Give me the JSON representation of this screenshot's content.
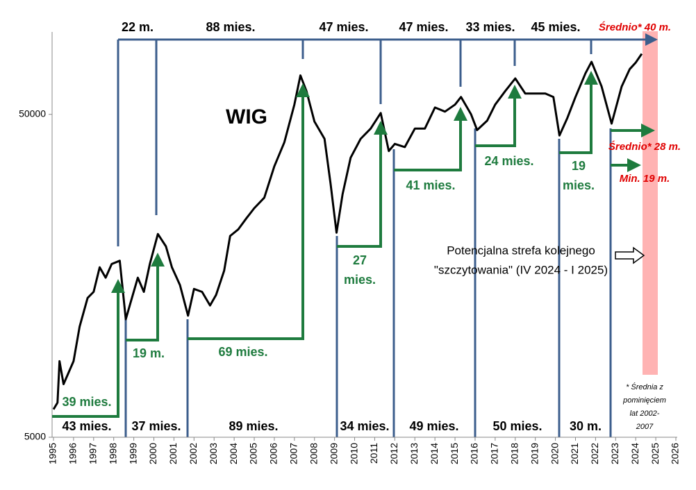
{
  "chart_data": {
    "type": "line",
    "x": [
      1995.0,
      1995.2,
      1995.3,
      1995.5,
      1996.0,
      1996.3,
      1996.7,
      1997.0,
      1997.3,
      1997.6,
      1997.9,
      1998.3,
      1998.6,
      1998.8,
      1999.2,
      1999.5,
      1999.8,
      2000.2,
      2000.6,
      2000.9,
      2001.3,
      2001.7,
      2002.0,
      2002.4,
      2002.8,
      2003.1,
      2003.5,
      2003.8,
      2004.2,
      2004.6,
      2005.0,
      2005.5,
      2006.0,
      2006.5,
      2007.0,
      2007.3,
      2007.6,
      2008.0,
      2008.5,
      2008.8,
      2009.1,
      2009.4,
      2009.8,
      2010.3,
      2010.8,
      2011.3,
      2011.7,
      2012.0,
      2012.5,
      2013.0,
      2013.5,
      2014.0,
      2014.5,
      2015.0,
      2015.3,
      2015.8,
      2016.1,
      2016.6,
      2017.0,
      2017.5,
      2018.0,
      2018.5,
      2019.0,
      2019.5,
      2019.9,
      2020.2,
      2020.6,
      2021.0,
      2021.5,
      2021.8,
      2022.3,
      2022.8,
      2023.3,
      2023.7,
      2024.0,
      2024.3
    ],
    "series": [
      {
        "name": "WIG",
        "color": "#000000",
        "values": [
          6100,
          6400,
          8600,
          7300,
          8600,
          11000,
          13500,
          14100,
          16800,
          15600,
          17200,
          17600,
          11600,
          12800,
          15600,
          14100,
          17200,
          21300,
          19500,
          16800,
          14800,
          11900,
          14400,
          14100,
          12800,
          13800,
          16400,
          21000,
          22000,
          23800,
          25600,
          27600,
          34500,
          41000,
          53600,
          66000,
          59000,
          47500,
          42000,
          30500,
          21500,
          28300,
          36700,
          42000,
          45200,
          50500,
          38500,
          40500,
          39600,
          45200,
          45200,
          52500,
          51000,
          53600,
          56600,
          50000,
          44700,
          47800,
          53600,
          59000,
          64600,
          58000,
          58000,
          58000,
          56600,
          43000,
          48800,
          56600,
          67000,
          72700,
          61000,
          46800,
          61000,
          69000,
          72300,
          77000
        ]
      }
    ],
    "xlim": [
      1995,
      2026
    ],
    "xticks": [
      1995,
      1996,
      1997,
      1998,
      1999,
      2000,
      2001,
      2002,
      2003,
      2004,
      2005,
      2006,
      2007,
      2008,
      2009,
      2010,
      2011,
      2012,
      2013,
      2014,
      2015,
      2016,
      2017,
      2018,
      2019,
      2020,
      2021,
      2022,
      2023,
      2024,
      2025,
      2026
    ],
    "ylim": [
      5000,
      90000
    ],
    "yticks": [
      5000,
      50000
    ],
    "log_y": true,
    "top_labels": [
      "22 m.",
      "88 mies.",
      "47 mies.",
      "47 mies.",
      "33 mies.",
      "45 mies.",
      "Średnio* 40 m."
    ],
    "bottom_labels": [
      "43 mies.",
      "37 mies.",
      "89 mies.",
      "34 mies.",
      "49 mies.",
      "50 mies.",
      "30 m."
    ],
    "rise_labels": [
      "39 mies.",
      "19 m.",
      "69 mies.",
      [
        "27",
        "mies."
      ],
      "41 mies.",
      "24 mies.",
      [
        "19",
        "mies."
      ]
    ],
    "average_labels": [
      "Średnio* 28 m.",
      "Min. 19 m."
    ],
    "zone_note": [
      "Potencjalna strefa kolejnego",
      "\"szczytowania\" (IV 2024 - I 2025)"
    ],
    "footnote": [
      "* Średnia z",
      "pominięciem",
      "lat 2002-",
      "2007"
    ]
  }
}
